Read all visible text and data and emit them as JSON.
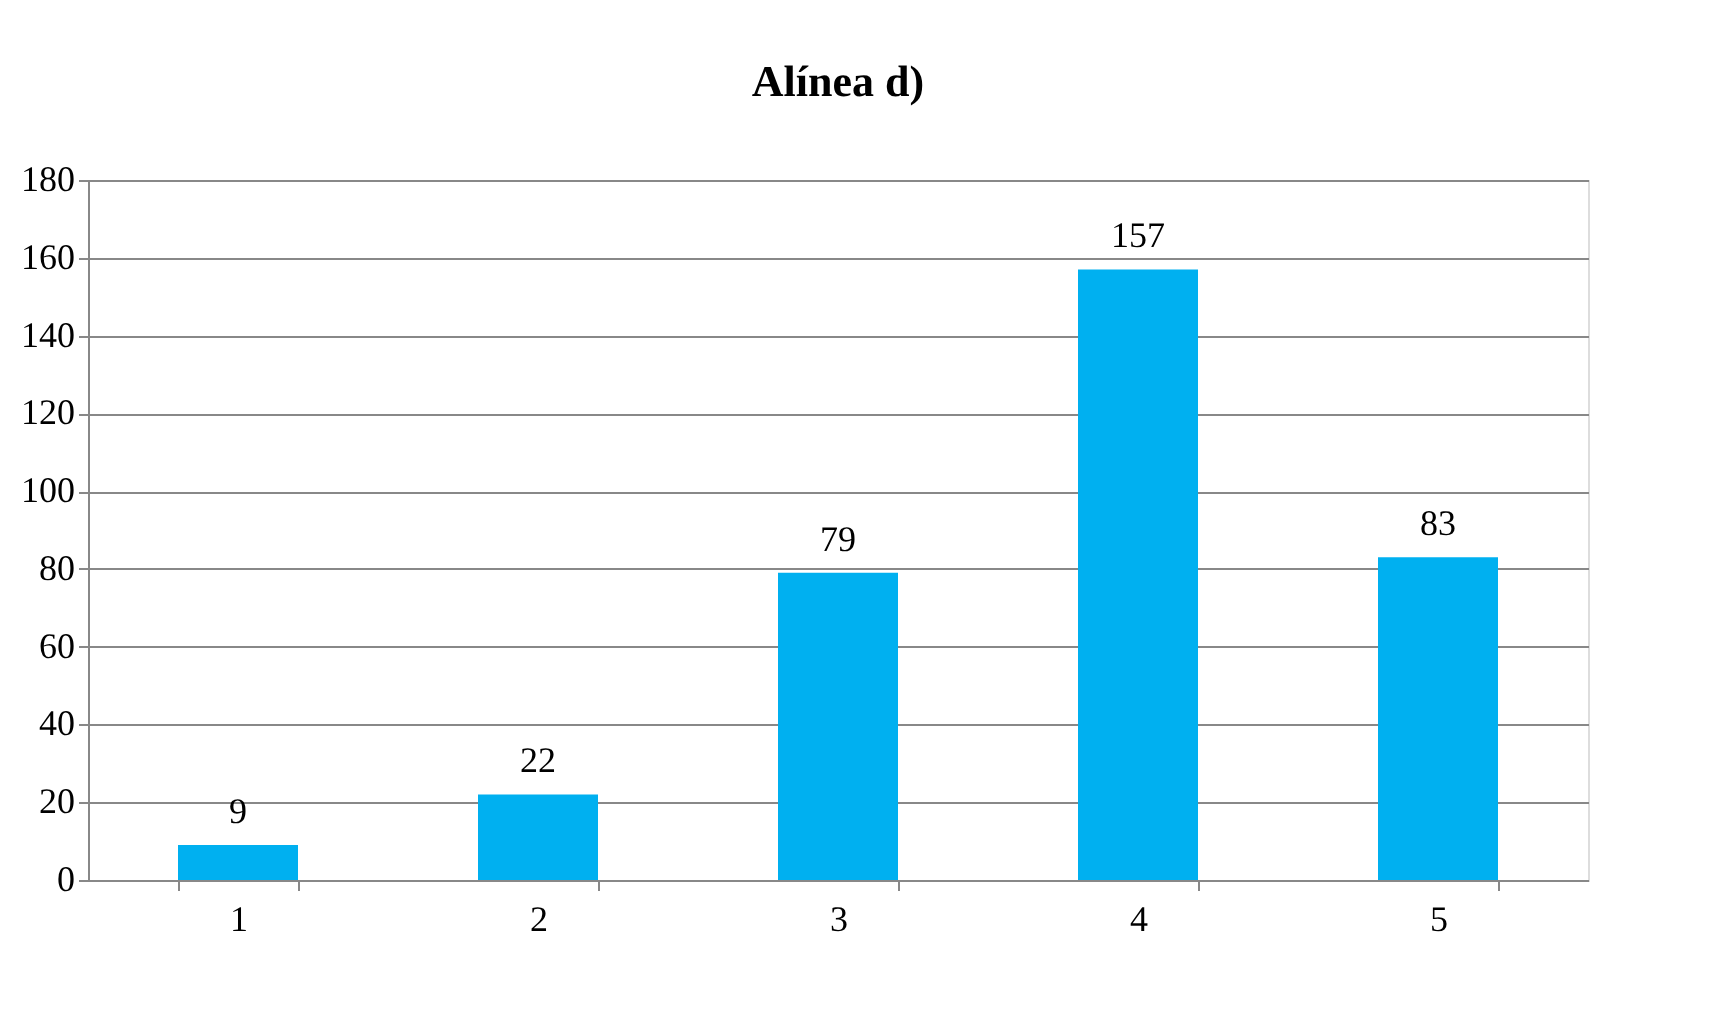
{
  "chart_data": {
    "type": "bar",
    "title": "Alínea d)",
    "categories": [
      "1",
      "2",
      "3",
      "4",
      "5"
    ],
    "series": [
      {
        "color": "#00b0f0",
        "values": [
          9,
          22,
          79,
          157,
          83
        ]
      }
    ],
    "ylim": [
      0,
      180
    ],
    "yticks": [
      0,
      20,
      40,
      60,
      80,
      100,
      120,
      140,
      160,
      180
    ],
    "grid": "y",
    "data_labels": true
  }
}
